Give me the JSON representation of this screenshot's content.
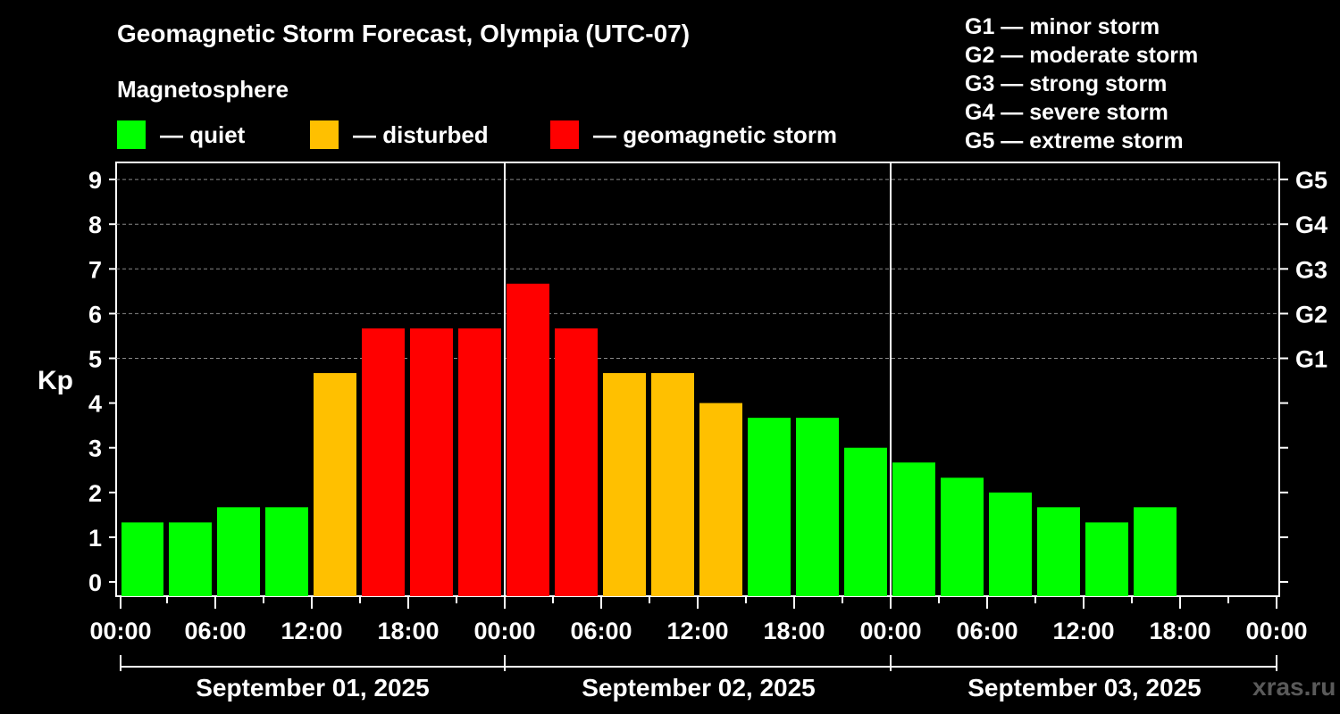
{
  "header": {
    "title": "Geomagnetic Storm Forecast, Olympia (UTC-07)",
    "subtitle": "Magnetosphere",
    "watermark": "xras.ru"
  },
  "legend": [
    {
      "label": "— quiet",
      "color": "#00ff00"
    },
    {
      "label": "— disturbed",
      "color": "#ffc000"
    },
    {
      "label": "— geomagnetic storm",
      "color": "#ff0000"
    }
  ],
  "storm_levels": [
    "G1 — minor storm",
    "G2 — moderate storm",
    "G3 — strong storm",
    "G4 — severe storm",
    "G5 — extreme storm"
  ],
  "chart_data": {
    "type": "bar",
    "title": "Geomagnetic Storm Forecast, Olympia (UTC-07)",
    "ylabel": "Kp",
    "ylim": [
      0,
      9
    ],
    "yticks": [
      "0",
      "1",
      "2",
      "3",
      "4",
      "5",
      "6",
      "7",
      "8",
      "9"
    ],
    "right_ticks": [
      {
        "label": "G1",
        "value": 5
      },
      {
        "label": "G2",
        "value": 6
      },
      {
        "label": "G3",
        "value": 7
      },
      {
        "label": "G4",
        "value": 8
      },
      {
        "label": "G5",
        "value": 9
      }
    ],
    "x_tick_labels": [
      "00:00",
      "06:00",
      "12:00",
      "18:00",
      "00:00",
      "06:00",
      "12:00",
      "18:00",
      "00:00",
      "06:00",
      "12:00",
      "18:00",
      "00:00"
    ],
    "dates": [
      "September 01, 2025",
      "September 02, 2025",
      "September 03, 2025"
    ],
    "grid": "horizontal dashed",
    "interval_hours": 3,
    "colors": {
      "quiet": "#00ff00",
      "disturbed": "#ffc000",
      "storm": "#ff0000"
    },
    "bars": [
      {
        "start": "00:00",
        "kp": 1.33,
        "level": "quiet"
      },
      {
        "start": "03:00",
        "kp": 1.33,
        "level": "quiet"
      },
      {
        "start": "06:00",
        "kp": 1.67,
        "level": "quiet"
      },
      {
        "start": "09:00",
        "kp": 1.67,
        "level": "quiet"
      },
      {
        "start": "12:00",
        "kp": 4.67,
        "level": "disturbed"
      },
      {
        "start": "15:00",
        "kp": 5.67,
        "level": "storm"
      },
      {
        "start": "18:00",
        "kp": 5.67,
        "level": "storm"
      },
      {
        "start": "21:00",
        "kp": 5.67,
        "level": "storm"
      },
      {
        "start": "00:00",
        "kp": 6.67,
        "level": "storm"
      },
      {
        "start": "03:00",
        "kp": 5.67,
        "level": "storm"
      },
      {
        "start": "06:00",
        "kp": 4.67,
        "level": "disturbed"
      },
      {
        "start": "09:00",
        "kp": 4.67,
        "level": "disturbed"
      },
      {
        "start": "12:00",
        "kp": 4.0,
        "level": "disturbed"
      },
      {
        "start": "15:00",
        "kp": 3.67,
        "level": "quiet"
      },
      {
        "start": "18:00",
        "kp": 3.67,
        "level": "quiet"
      },
      {
        "start": "21:00",
        "kp": 3.0,
        "level": "quiet"
      },
      {
        "start": "00:00",
        "kp": 2.67,
        "level": "quiet"
      },
      {
        "start": "03:00",
        "kp": 2.33,
        "level": "quiet"
      },
      {
        "start": "06:00",
        "kp": 2.0,
        "level": "quiet"
      },
      {
        "start": "09:00",
        "kp": 1.67,
        "level": "quiet"
      },
      {
        "start": "12:00",
        "kp": 1.33,
        "level": "quiet"
      },
      {
        "start": "15:00",
        "kp": 1.67,
        "level": "quiet"
      }
    ]
  }
}
